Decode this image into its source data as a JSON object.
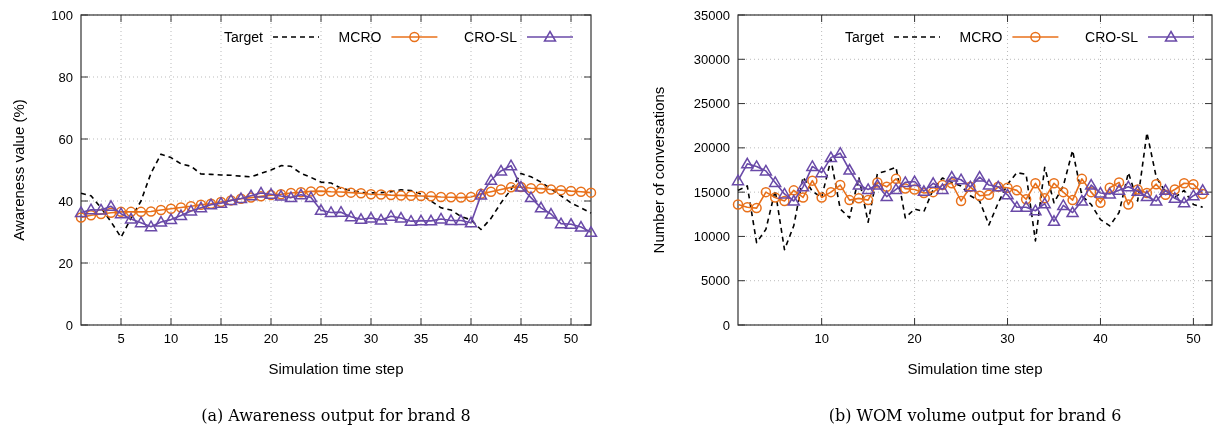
{
  "chart_data": [
    {
      "type": "line",
      "title": "(a) Awareness output for brand 8",
      "xlabel": "Simulation time step",
      "ylabel": "Awareness value (%)",
      "x": [
        1,
        2,
        3,
        4,
        5,
        6,
        7,
        8,
        9,
        10,
        11,
        12,
        13,
        14,
        15,
        16,
        17,
        18,
        19,
        20,
        21,
        22,
        23,
        24,
        25,
        26,
        27,
        28,
        29,
        30,
        31,
        32,
        33,
        34,
        35,
        36,
        37,
        38,
        39,
        40,
        41,
        42,
        43,
        44,
        45,
        46,
        47,
        48,
        49,
        50,
        51,
        52
      ],
      "xlim": [
        1,
        52
      ],
      "xticks": [
        5,
        10,
        15,
        20,
        25,
        30,
        35,
        40,
        45,
        50
      ],
      "ylim": [
        0,
        100
      ],
      "yticks": [
        0,
        20,
        40,
        60,
        80,
        100
      ],
      "grid": true,
      "legend": "top right",
      "series": [
        {
          "name": "Target",
          "color": "#000000",
          "line_style": "dashed",
          "marker": "none",
          "values": [
            42.5,
            41.7,
            37.8,
            33.3,
            28.3,
            34.4,
            40,
            49,
            55.1,
            54,
            52,
            51.2,
            48.7,
            48.6,
            48.4,
            48.3,
            48,
            47.8,
            48.9,
            50,
            51.4,
            51.2,
            48.9,
            47.6,
            46.1,
            45.8,
            44.1,
            43.4,
            42.8,
            42.6,
            42.7,
            43,
            43.6,
            43.4,
            42.2,
            40,
            37.8,
            37.1,
            35,
            33.9,
            30.8,
            34.4,
            39.4,
            43.7,
            48.9,
            47.8,
            46.1,
            43.9,
            41.7,
            39.4,
            37.8,
            36.1
          ]
        },
        {
          "name": "MCRO",
          "color": "#e8701a",
          "line_style": "solid",
          "marker": "circle",
          "values": [
            34.7,
            35.4,
            35.8,
            36.2,
            36.5,
            36.5,
            36.5,
            36.6,
            37.1,
            37.5,
            37.9,
            38.3,
            38.8,
            39.1,
            39.7,
            40.2,
            40.7,
            41.1,
            41.5,
            41.9,
            42.2,
            42.6,
            42.8,
            43.1,
            43.2,
            43,
            42.9,
            42.7,
            42.5,
            42.2,
            42.1,
            41.9,
            41.8,
            41.7,
            41.6,
            41.5,
            41.3,
            41.2,
            41.1,
            41.3,
            42.3,
            43,
            43.7,
            44.4,
            44.5,
            44.1,
            44,
            43.7,
            43.5,
            43.2,
            43,
            42.7
          ]
        },
        {
          "name": "CRO-SL",
          "color": "#6a4aa8",
          "line_style": "solid",
          "marker": "triangle",
          "values": [
            36.3,
            37.2,
            37.1,
            38.3,
            35.9,
            34.2,
            33,
            31.7,
            33.2,
            34,
            35.3,
            36.8,
            37.8,
            38.8,
            39.3,
            40.2,
            40.8,
            41.7,
            42.6,
            42.2,
            41.6,
            41.1,
            42,
            41.1,
            37,
            36.3,
            36.4,
            34.9,
            34.1,
            34.5,
            33.9,
            35.1,
            34.5,
            33.5,
            33.6,
            33.6,
            34.2,
            33.7,
            33.7,
            33,
            41.9,
            46.7,
            49.7,
            51.4,
            44.5,
            41.1,
            37.8,
            35.8,
            32.7,
            32.5,
            31.6,
            29.9
          ]
        }
      ]
    },
    {
      "type": "line",
      "title": "(b) WOM volume output for brand 6",
      "xlabel": "Simulation time step",
      "ylabel": "Number of conversations",
      "x": [
        1,
        2,
        3,
        4,
        5,
        6,
        7,
        8,
        9,
        10,
        11,
        12,
        13,
        14,
        15,
        16,
        17,
        18,
        19,
        20,
        21,
        22,
        23,
        24,
        25,
        26,
        27,
        28,
        29,
        30,
        31,
        32,
        33,
        34,
        35,
        36,
        37,
        38,
        39,
        40,
        41,
        42,
        43,
        44,
        45,
        46,
        47,
        48,
        49,
        50,
        51
      ],
      "xlim": [
        1,
        52
      ],
      "xticks": [
        10,
        20,
        30,
        40,
        50
      ],
      "ylim": [
        0,
        35000
      ],
      "yticks": [
        0,
        5000,
        10000,
        15000,
        20000,
        25000,
        30000,
        35000
      ],
      "grid": true,
      "legend": "top right",
      "series": [
        {
          "name": "Target",
          "color": "#000000",
          "line_style": "dashed",
          "marker": "none",
          "values": [
            15200,
            15700,
            9300,
            10800,
            15200,
            8500,
            11200,
            16700,
            15100,
            14400,
            18700,
            13100,
            12100,
            16700,
            11600,
            17100,
            17400,
            17800,
            12100,
            13100,
            12800,
            15300,
            16600,
            16100,
            15700,
            14600,
            14000,
            11300,
            13800,
            15900,
            17200,
            17000,
            9500,
            17800,
            13800,
            15700,
            19700,
            14600,
            13600,
            11900,
            11200,
            12700,
            17200,
            14000,
            21700,
            16700,
            15000,
            14400,
            15200,
            13600,
            13300
          ]
        },
        {
          "name": "MCRO",
          "color": "#e8701a",
          "line_style": "solid",
          "marker": "circle",
          "values": [
            13600,
            13300,
            13200,
            15000,
            14400,
            14000,
            15200,
            14400,
            16300,
            14400,
            15000,
            15800,
            14100,
            14300,
            14100,
            16100,
            15600,
            16500,
            15400,
            15300,
            14900,
            15000,
            15800,
            16000,
            14000,
            15600,
            14600,
            14700,
            15600,
            15500,
            15200,
            14200,
            16000,
            14300,
            16000,
            15000,
            14100,
            16500,
            15000,
            13800,
            15500,
            16100,
            13600,
            15300,
            14900,
            15900,
            14700,
            15300,
            16000,
            15900,
            14800
          ]
        },
        {
          "name": "CRO-SL",
          "color": "#6a4aa8",
          "line_style": "solid",
          "marker": "triangle",
          "values": [
            16300,
            18200,
            17900,
            17400,
            16100,
            14800,
            14000,
            15600,
            17900,
            17200,
            18900,
            19400,
            17500,
            15800,
            15300,
            15800,
            14500,
            15300,
            16100,
            16200,
            15100,
            16000,
            15300,
            16700,
            16400,
            15600,
            16700,
            15800,
            15600,
            14700,
            13300,
            13300,
            12900,
            13700,
            11700,
            13500,
            12700,
            14000,
            15800,
            14900,
            14800,
            15200,
            15600,
            15100,
            14500,
            14000,
            15200,
            14300,
            13800,
            14600,
            15200
          ]
        }
      ]
    }
  ]
}
